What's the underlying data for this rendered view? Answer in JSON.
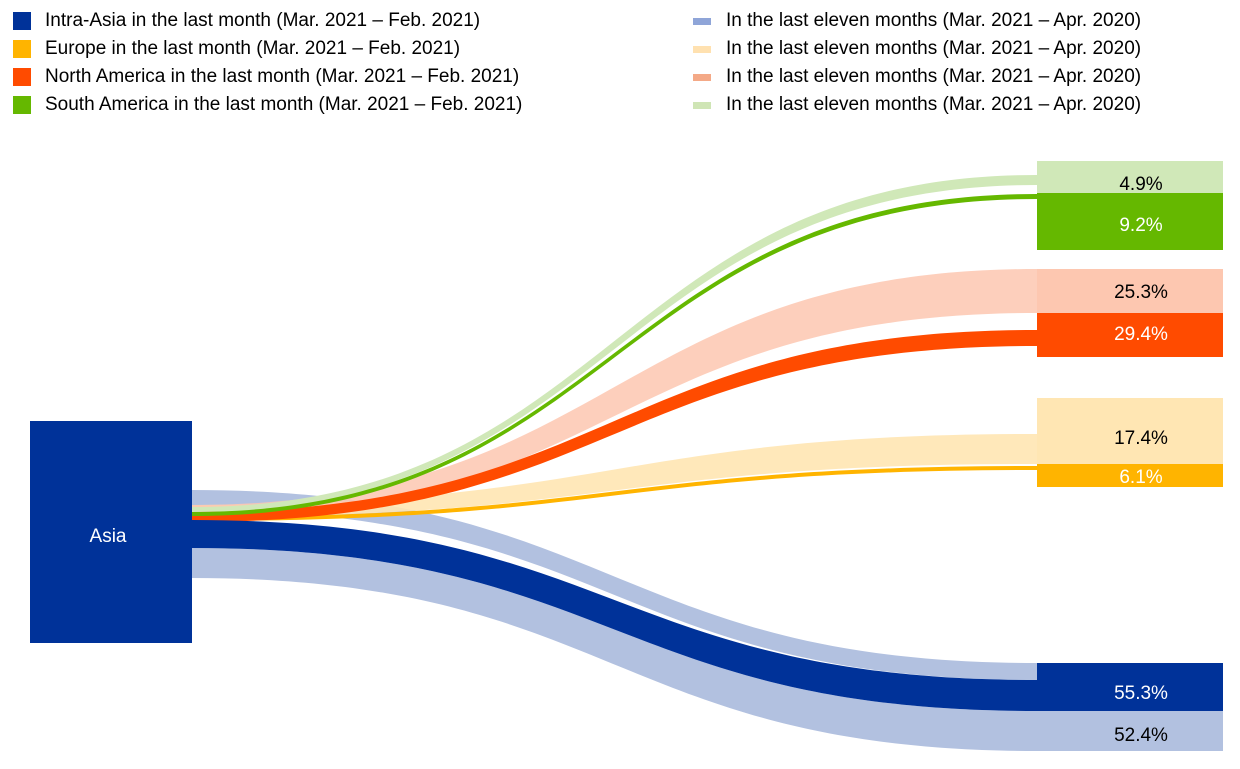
{
  "chart_data": {
    "type": "sankey",
    "title": "",
    "source": {
      "label": "Asia",
      "color": "#003299"
    },
    "legend": {
      "last_month": [
        {
          "label": "Intra-Asia in the last month (Mar. 2021 – Feb. 2021)",
          "color": "#003299"
        },
        {
          "label": "Europe in the last month (Mar. 2021 – Feb. 2021)",
          "color": "#FFB400"
        },
        {
          "label": "North America in the last month (Mar. 2021 – Feb. 2021)",
          "color": "#FF4B00"
        },
        {
          "label": "South America in the last month (Mar. 2021 – Feb. 2021)",
          "color": "#65B800"
        }
      ],
      "eleven_months": [
        {
          "label": "In the last eleven months (Mar. 2021 – Apr. 2020)",
          "color": "#8FA5D8"
        },
        {
          "label": "In the last eleven months (Mar. 2021 – Apr. 2020)",
          "color": "#FFE1B0"
        },
        {
          "label": "In the last eleven months (Mar. 2021 – Apr. 2020)",
          "color": "#F4A987"
        },
        {
          "label": "In the last eleven months (Mar. 2021 – Apr. 2020)",
          "color": "#CFE5B5"
        }
      ]
    },
    "series": [
      {
        "name": "Intra-Asia",
        "last_month": 55.3,
        "eleven_months": 52.4,
        "color": "#003299",
        "light_color": "#B2C1E0"
      },
      {
        "name": "Europe",
        "last_month": 6.1,
        "eleven_months": 17.4,
        "color": "#FFB400",
        "light_color": "#FFE6B3"
      },
      {
        "name": "North America",
        "last_month": 29.4,
        "eleven_months": 25.3,
        "color": "#FF4B00",
        "light_color": "#FDC7B0"
      },
      {
        "name": "South America",
        "last_month": 9.2,
        "eleven_months": 4.9,
        "color": "#65B800",
        "light_color": "#D0E8B8"
      }
    ],
    "value_labels": {
      "south_america_eleven": "4.9%",
      "south_america_last": "9.2%",
      "north_america_eleven": "25.3%",
      "north_america_last": "29.4%",
      "europe_eleven": "17.4%",
      "europe_last": "6.1%",
      "intra_asia_last": "55.3%",
      "intra_asia_eleven": "52.4%"
    },
    "unit": "%"
  }
}
